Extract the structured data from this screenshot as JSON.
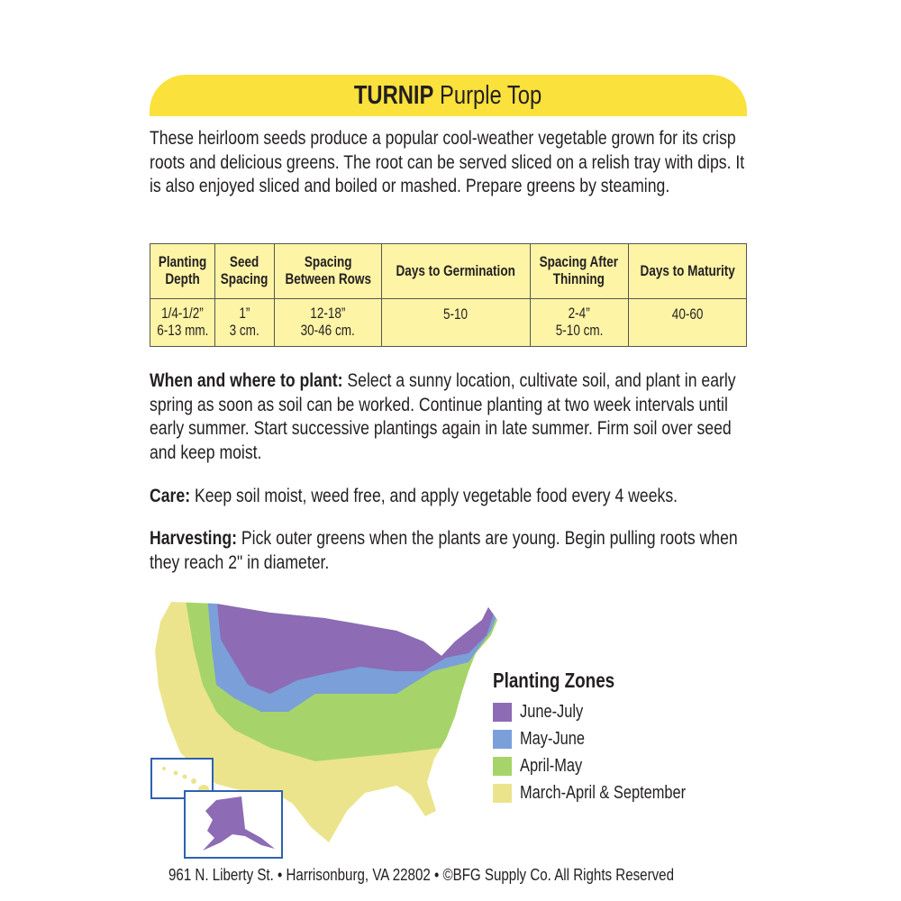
{
  "header": {
    "title_bold": "TURNIP",
    "title_rest": "Purple Top",
    "banner_color": "#fbe13c"
  },
  "intro": "These heirloom seeds produce a popular cool-weather vegetable grown for its crisp roots and delicious greens. The root can be served sliced on a relish tray with dips. It is also enjoyed sliced and boiled or mashed. Prepare greens by steaming.",
  "table": {
    "headers": [
      "Planting Depth",
      "Seed Spacing",
      "Spacing Between Rows",
      "Days to Germination",
      "Spacing After Thinning",
      "Days to Maturity"
    ],
    "values": [
      [
        "1/4-1/2”",
        "6-13 mm."
      ],
      [
        "1”",
        "3 cm."
      ],
      [
        "12-18”",
        "30-46 cm."
      ],
      [
        "5-10",
        ""
      ],
      [
        "2-4”",
        "5-10 cm."
      ],
      [
        "40-60",
        ""
      ]
    ]
  },
  "sections": [
    {
      "label": "When and where to plant:",
      "text": "Select a sunny location, cultivate soil, and plant in early spring as soon as soil can be worked. Continue planting at two week intervals until early summer. Start successive plantings again in late summer. Firm soil over seed and keep moist."
    },
    {
      "label": "Care:",
      "text": "Keep soil moist, weed free, and apply vegetable food every 4 weeks."
    },
    {
      "label": "Harvesting:",
      "text": "Pick outer greens when the plants are young. Begin pulling roots when they reach 2\" in diameter."
    }
  ],
  "legend": {
    "title": "Planting Zones",
    "items": [
      {
        "label": "June-July",
        "color": "#8d6bb5"
      },
      {
        "label": "May-June",
        "color": "#7b9fd9"
      },
      {
        "label": "April-May",
        "color": "#a6d46a"
      },
      {
        "label": "March-April & September",
        "color": "#ece48c"
      }
    ]
  },
  "footer": "961 N. Liberty St. • Harrisonburg, VA 22802 • ©BFG Supply Co. All Rights Reserved"
}
